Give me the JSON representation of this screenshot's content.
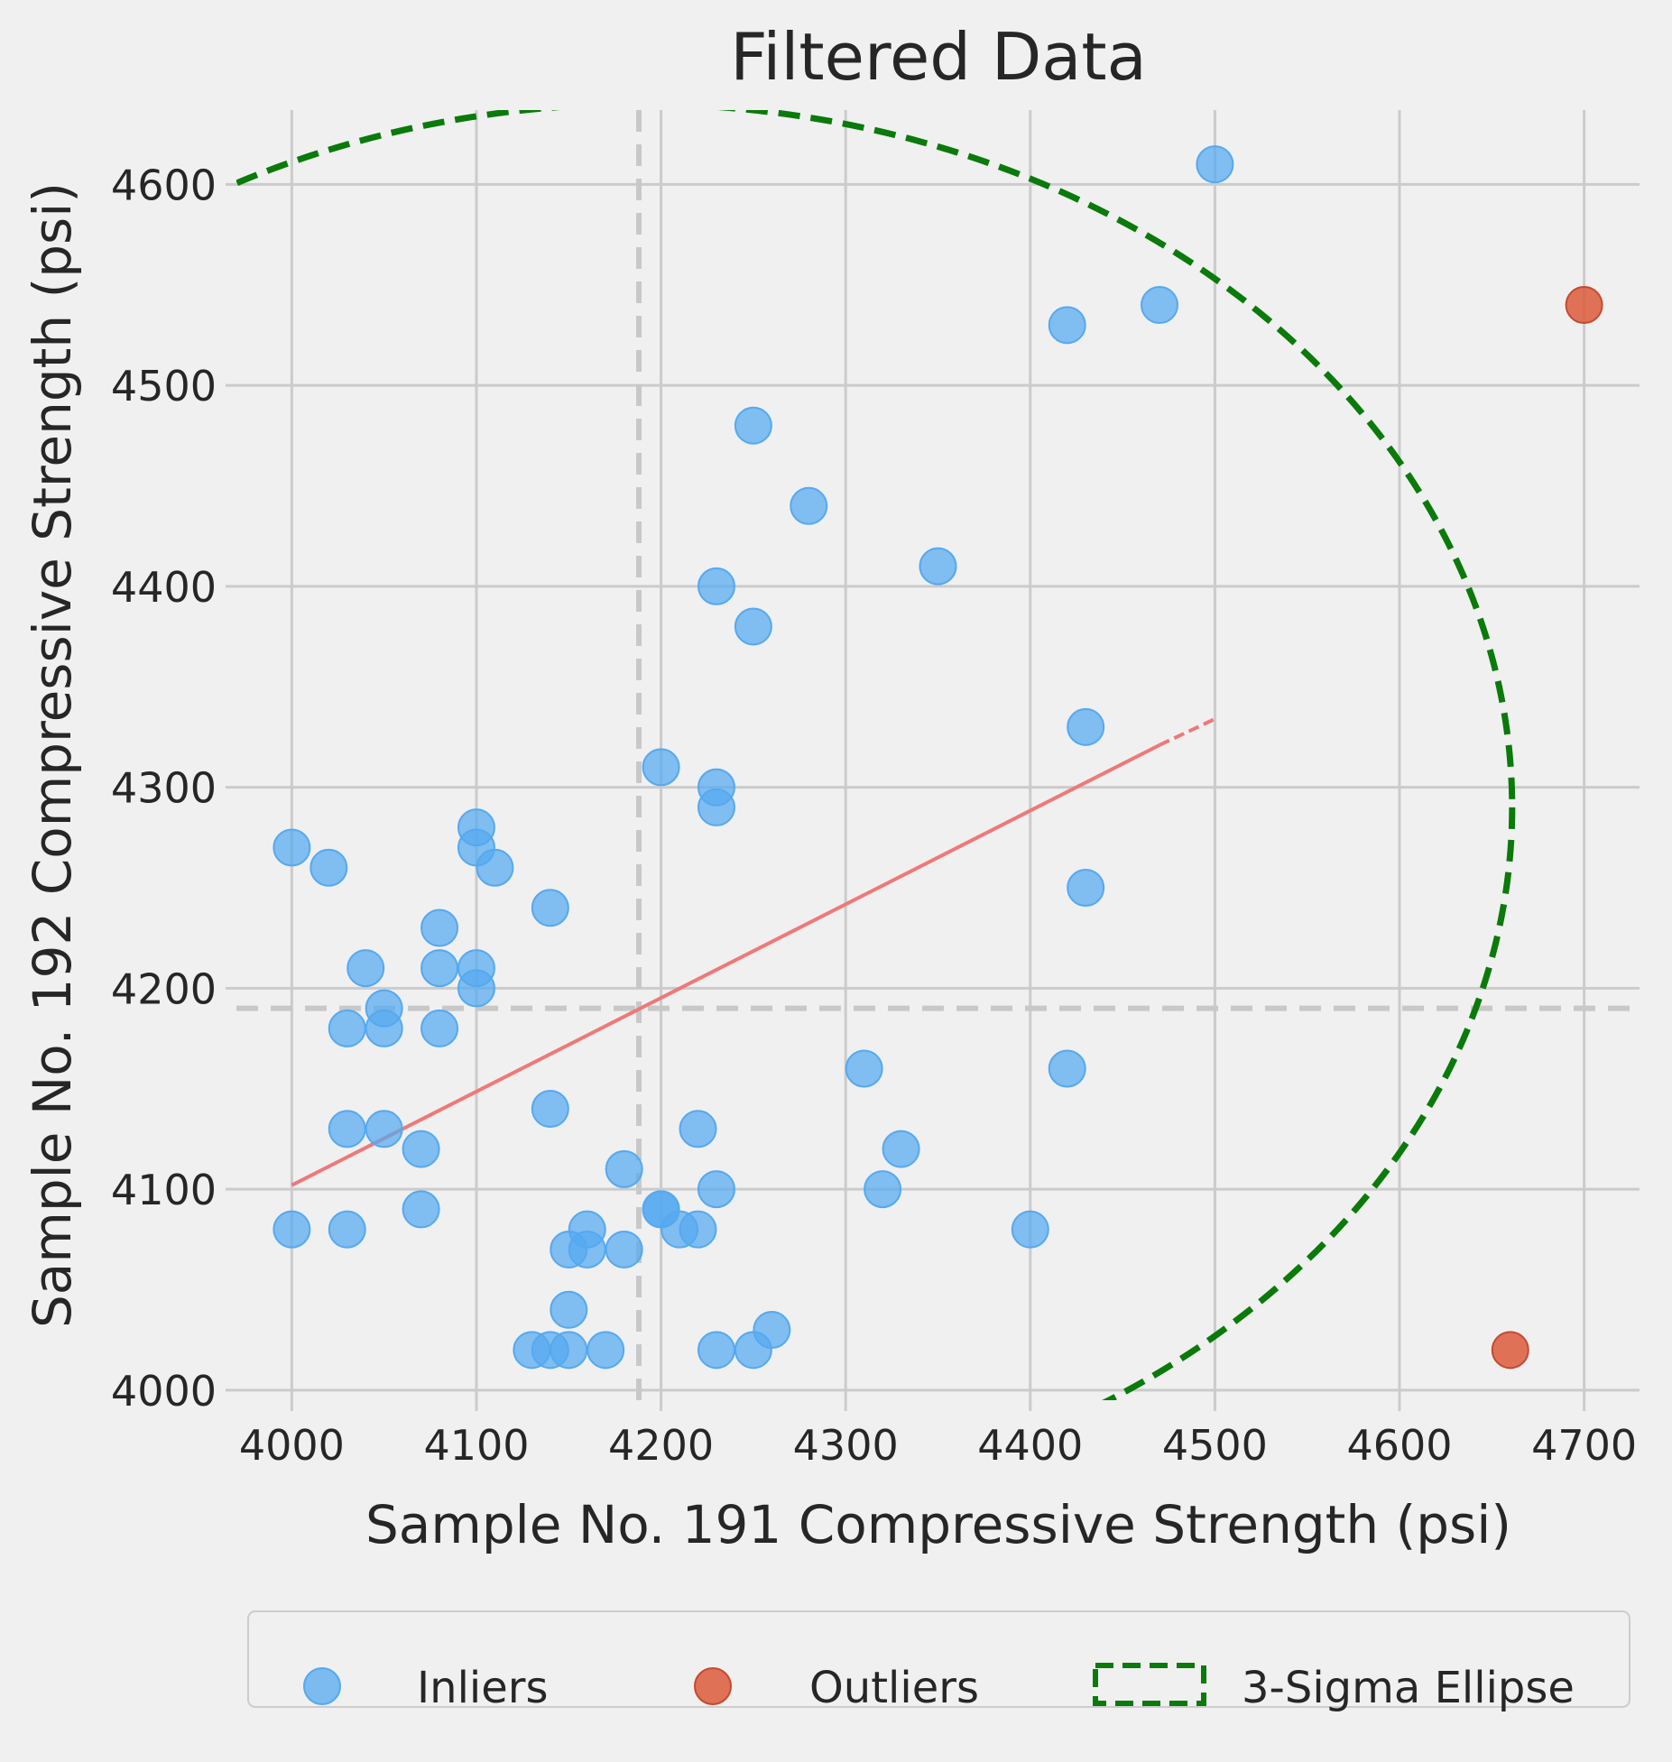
{
  "chart_data": {
    "type": "scatter",
    "title": "Filtered Data",
    "xlabel": "Sample No. 191 Compressive Strength (psi)",
    "ylabel": "Sample No. 192 Compressive Strength (psi)",
    "xlim": [
      3970,
      4730
    ],
    "ylim": [
      3995,
      4637
    ],
    "xticks": [
      4000,
      4100,
      4200,
      4300,
      4400,
      4500,
      4600,
      4700
    ],
    "yticks": [
      4000,
      4100,
      4200,
      4300,
      4400,
      4500,
      4600
    ],
    "grid": true,
    "legend": {
      "placement": "bottom-center",
      "entries": [
        "Inliers",
        "Outliers",
        "3-Sigma Ellipse"
      ]
    },
    "series": [
      {
        "name": "Inliers",
        "color": "#54a9f0",
        "points": [
          [
            4000,
            4270
          ],
          [
            4000,
            4080
          ],
          [
            4020,
            4260
          ],
          [
            4030,
            4180
          ],
          [
            4030,
            4130
          ],
          [
            4030,
            4080
          ],
          [
            4040,
            4210
          ],
          [
            4050,
            4190
          ],
          [
            4050,
            4180
          ],
          [
            4050,
            4130
          ],
          [
            4070,
            4120
          ],
          [
            4070,
            4090
          ],
          [
            4080,
            4230
          ],
          [
            4080,
            4210
          ],
          [
            4080,
            4180
          ],
          [
            4100,
            4280
          ],
          [
            4100,
            4270
          ],
          [
            4100,
            4210
          ],
          [
            4100,
            4200
          ],
          [
            4110,
            4260
          ],
          [
            4140,
            4240
          ],
          [
            4140,
            4140
          ],
          [
            4130,
            4020
          ],
          [
            4140,
            4020
          ],
          [
            4150,
            4020
          ],
          [
            4150,
            4070
          ],
          [
            4150,
            4040
          ],
          [
            4160,
            4080
          ],
          [
            4160,
            4070
          ],
          [
            4170,
            4020
          ],
          [
            4180,
            4110
          ],
          [
            4180,
            4070
          ],
          [
            4200,
            4310
          ],
          [
            4200,
            4090
          ],
          [
            4200,
            4090
          ],
          [
            4210,
            4080
          ],
          [
            4220,
            4130
          ],
          [
            4220,
            4080
          ],
          [
            4230,
            4400
          ],
          [
            4230,
            4300
          ],
          [
            4230,
            4290
          ],
          [
            4230,
            4100
          ],
          [
            4230,
            4020
          ],
          [
            4250,
            4480
          ],
          [
            4250,
            4380
          ],
          [
            4250,
            4020
          ],
          [
            4260,
            4030
          ],
          [
            4280,
            4440
          ],
          [
            4310,
            4160
          ],
          [
            4320,
            4100
          ],
          [
            4330,
            4120
          ],
          [
            4350,
            4410
          ],
          [
            4400,
            4080
          ],
          [
            4420,
            4530
          ],
          [
            4420,
            4160
          ],
          [
            4430,
            4330
          ],
          [
            4430,
            4250
          ],
          [
            4470,
            4540
          ],
          [
            4500,
            4610
          ]
        ]
      },
      {
        "name": "Outliers",
        "color": "#dc5a3c",
        "points": [
          [
            4700,
            4540
          ],
          [
            4660,
            4020
          ]
        ]
      }
    ],
    "mean_lines": {
      "x": 4188,
      "y": 4190,
      "color": "#c8c8c8"
    },
    "regression": {
      "x": [
        4000,
        4470
      ],
      "y": [
        4102,
        4321
      ],
      "extension": {
        "x": [
          4470,
          4500
        ],
        "y": [
          4321,
          4334
        ]
      },
      "color": "#f07878"
    },
    "ellipse": {
      "label": "3-Sigma Ellipse",
      "center": [
        4188,
        4290
      ],
      "rx": 473,
      "ry": 350,
      "color": "#0a7a0a"
    }
  }
}
